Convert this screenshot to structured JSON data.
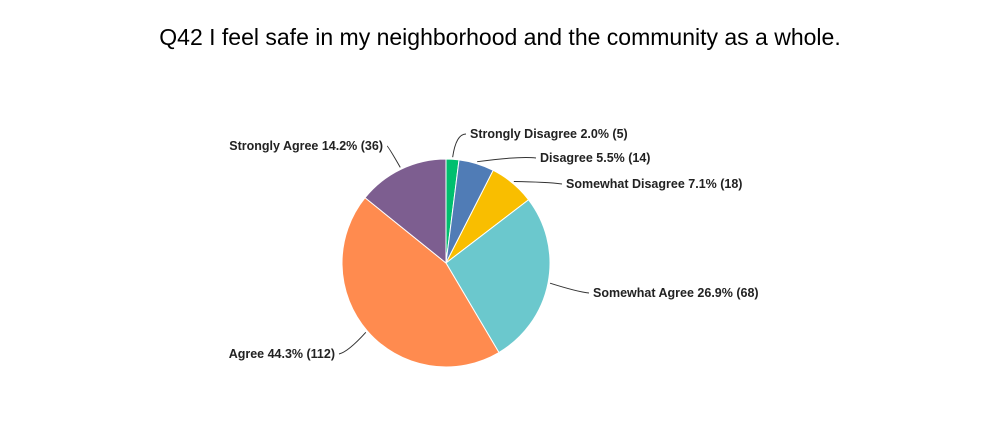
{
  "chart_data": {
    "type": "pie",
    "title": "Q42 I feel safe in my neighborhood and the community as a whole.",
    "slices": [
      {
        "name": "Strongly Disagree",
        "percent": 2.0,
        "count": 5,
        "color": "#00BF6F",
        "label": "Strongly Disagree 2.0% (5)"
      },
      {
        "name": "Disagree",
        "percent": 5.5,
        "count": 14,
        "color": "#507CB6",
        "label": "Disagree 5.5% (14)"
      },
      {
        "name": "Somewhat Disagree",
        "percent": 7.1,
        "count": 18,
        "color": "#F9BE00",
        "label": "Somewhat Disagree 7.1% (18)"
      },
      {
        "name": "Somewhat Agree",
        "percent": 26.9,
        "count": 68,
        "color": "#6BC8CD",
        "label": "Somewhat Agree 26.9% (68)"
      },
      {
        "name": "Agree",
        "percent": 44.3,
        "count": 112,
        "color": "#FF8B4F",
        "label": "Agree 44.3% (112)"
      },
      {
        "name": "Strongly Agree",
        "percent": 14.2,
        "count": 36,
        "color": "#7D5E90",
        "label": "Strongly Agree 14.2% (36)"
      }
    ]
  }
}
